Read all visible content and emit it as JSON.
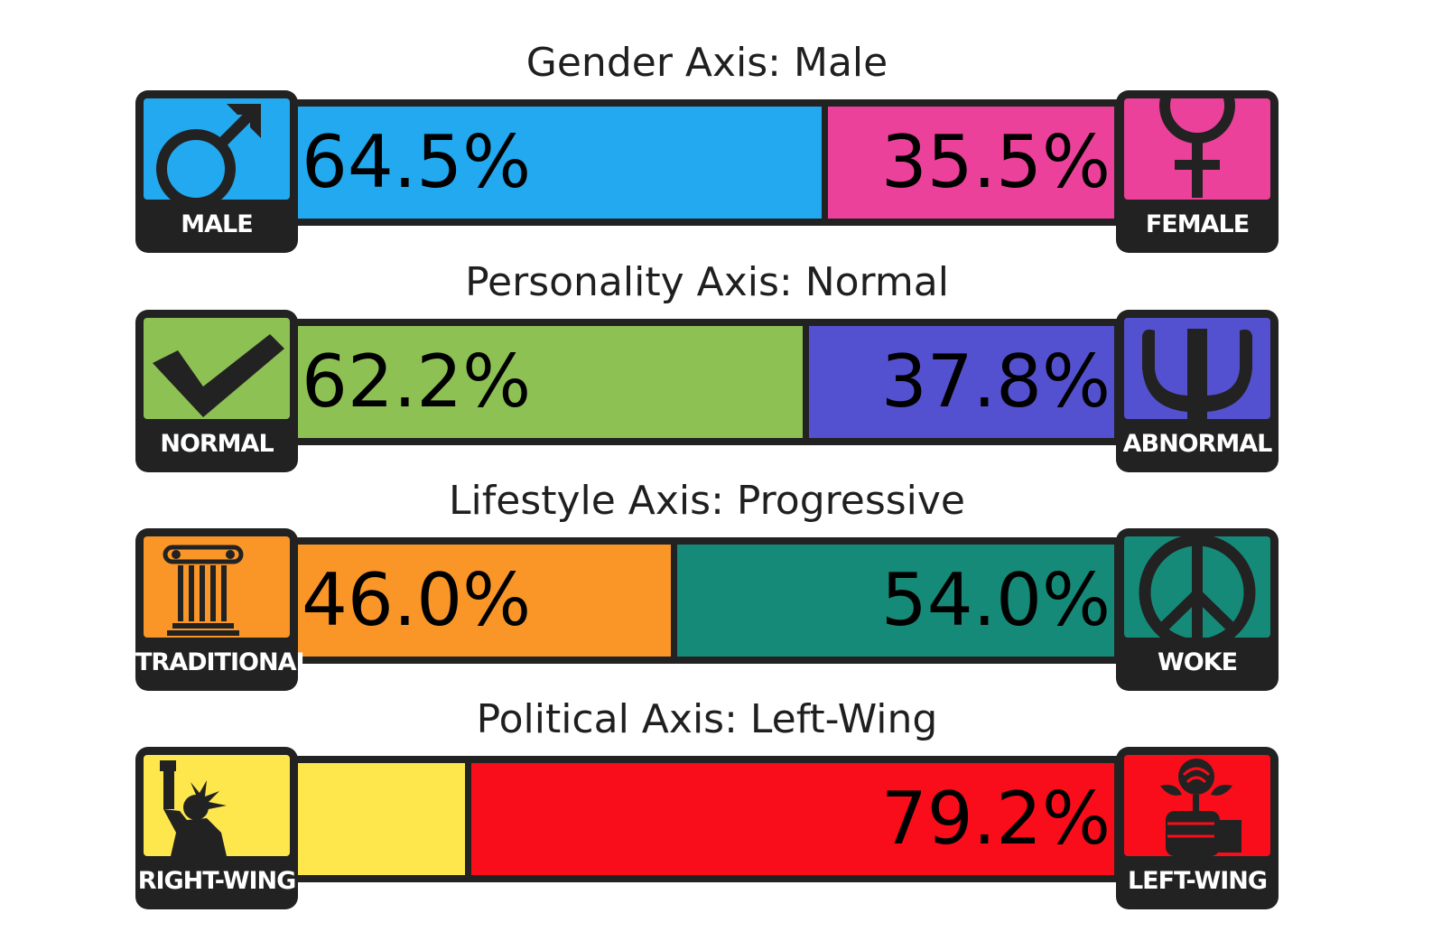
{
  "chart_data": {
    "type": "bar",
    "axes": [
      {
        "title": "Gender Axis: Male",
        "left": {
          "label": "MALE",
          "value": 64.5,
          "display": "64.5%",
          "color": "#22A9EF",
          "icon": "male-symbol-icon"
        },
        "right": {
          "label": "FEMALE",
          "value": 35.5,
          "display": "35.5%",
          "color": "#EC419A",
          "icon": "female-symbol-icon"
        }
      },
      {
        "title": "Personality Axis: Normal",
        "left": {
          "label": "NORMAL",
          "value": 62.2,
          "display": "62.2%",
          "color": "#8DC153",
          "icon": "checkmark-icon"
        },
        "right": {
          "label": "ABNORMAL",
          "value": 37.8,
          "display": "37.8%",
          "color": "#5451D0",
          "icon": "psi-icon"
        }
      },
      {
        "title": "Lifestyle Axis: Progressive",
        "left": {
          "label": "TRADITIONAL",
          "value": 46.0,
          "display": "46.0%",
          "color": "#F99627",
          "icon": "column-icon"
        },
        "right": {
          "label": "WOKE",
          "value": 54.0,
          "display": "54.0%",
          "color": "#168A78",
          "icon": "peace-icon"
        }
      },
      {
        "title": "Political Axis: Left-Wing",
        "left": {
          "label": "RIGHT-WING",
          "value": 20.8,
          "display": "",
          "color": "#FEE74D",
          "icon": "statue-of-liberty-icon"
        },
        "right": {
          "label": "LEFT-WING",
          "value": 79.2,
          "display": "79.2%",
          "color": "#F90D1A",
          "icon": "rose-fist-icon"
        }
      }
    ]
  }
}
